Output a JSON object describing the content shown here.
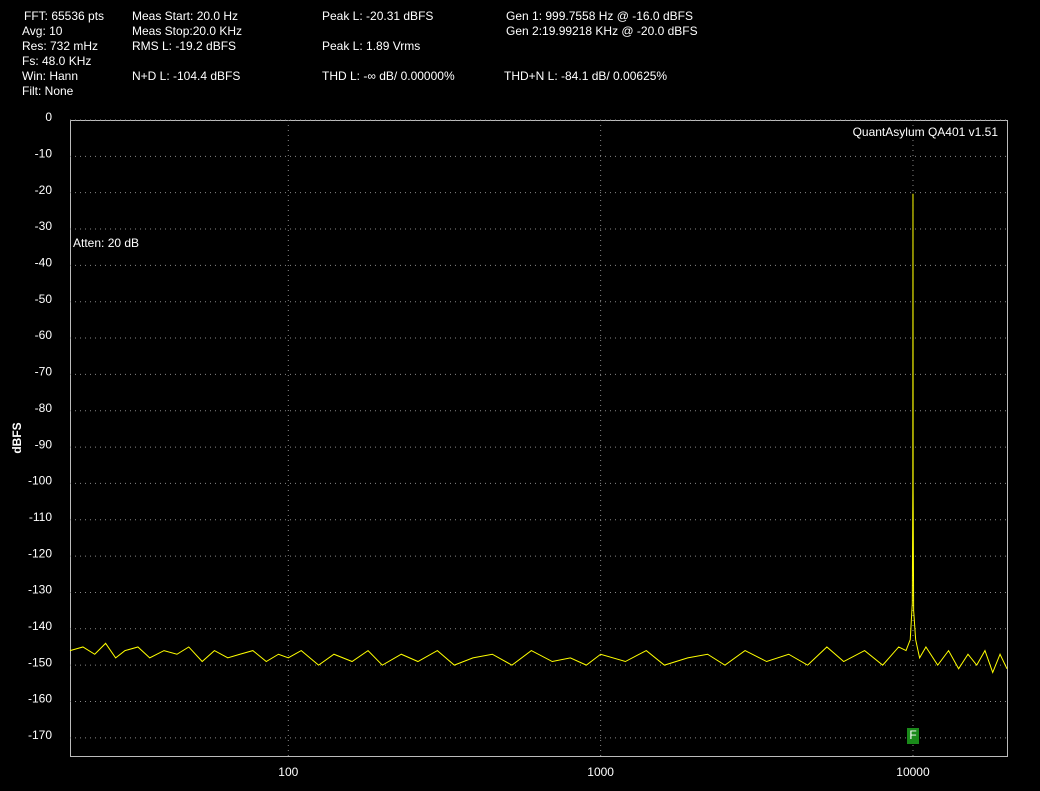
{
  "chart_data": {
    "type": "line",
    "y_label": "dBFS",
    "annotations": [
      "FFT: 65536 pts",
      "Avg: 10",
      "Res: 732 mHz",
      "Fs: 48.0 KHz",
      "Win: Hann",
      "Filt: None",
      "Meas Start: 20.0 Hz",
      "Meas Stop:20.0 KHz",
      "RMS L: -19.2 dBFS",
      "N+D L: -104.4 dBFS",
      "Peak L: -20.31 dBFS",
      "Peak L: 1.89 Vrms",
      "THD L: -∞ dB/ 0.00000%",
      "Gen 1: 999.7558 Hz @ -16.0  dBFS",
      "Gen 2:19.99218 KHz @ -20.0  dBFS",
      "THD+N L: -84.1 dB/ 0.00625%",
      "QuantAsylum QA401 v1.51",
      "Atten: 20 dB",
      "F"
    ],
    "x_log": true,
    "grid": true,
    "xlim": [
      20,
      20000
    ],
    "ylim": [
      -175,
      0
    ],
    "xticks": [
      100,
      1000,
      10000
    ],
    "yticks": [
      0,
      -10,
      -20,
      -30,
      -40,
      -50,
      -60,
      -70,
      -80,
      -90,
      -100,
      -110,
      -120,
      -130,
      -140,
      -150,
      -160,
      -170
    ],
    "series": [
      {
        "color": "#ffff00",
        "x": [
          20,
          22,
          24,
          26,
          28,
          30,
          33,
          36,
          40,
          44,
          48,
          53,
          58,
          64,
          70,
          77,
          85,
          93,
          100,
          110,
          125,
          140,
          160,
          180,
          200,
          230,
          260,
          300,
          340,
          390,
          450,
          520,
          600,
          700,
          800,
          900,
          1000,
          1200,
          1400,
          1600,
          1900,
          2200,
          2500,
          2900,
          3400,
          4000,
          4600,
          5300,
          6000,
          7000,
          8000,
          9000,
          9500,
          9800,
          9950,
          9990,
          10000,
          10010,
          10050,
          10200,
          10500,
          11000,
          12000,
          13000,
          14000,
          15000,
          16000,
          17000,
          18000,
          19000,
          20000
        ],
        "values": [
          -146,
          -145,
          -147,
          -144,
          -148,
          -146,
          -145,
          -148,
          -146,
          -147,
          -145,
          -149,
          -146,
          -148,
          -147,
          -146,
          -149,
          -147,
          -148,
          -146,
          -150,
          -147,
          -149,
          -146,
          -150,
          -147,
          -149,
          -146,
          -150,
          -148,
          -147,
          -150,
          -146,
          -149,
          -148,
          -150,
          -147,
          -149,
          -146,
          -150,
          -148,
          -147,
          -150,
          -146,
          -149,
          -147,
          -150,
          -145,
          -149,
          -146,
          -150,
          -145,
          -146,
          -143,
          -133,
          -100,
          -20.31,
          -100,
          -135,
          -143,
          -148,
          -145,
          -150,
          -146,
          -151,
          -147,
          -150,
          -146,
          -152,
          -147,
          -151
        ]
      }
    ]
  }
}
